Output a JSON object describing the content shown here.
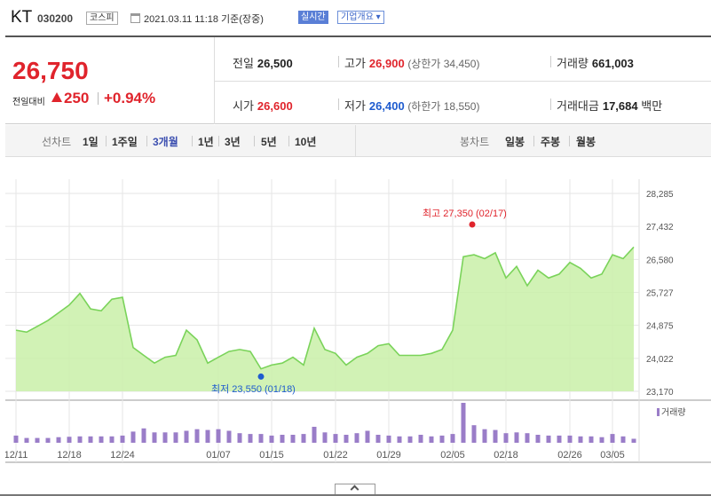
{
  "header": {
    "name": "KT",
    "code": "030200",
    "market": "코스피",
    "timestamp": "2021.03.11 11:18 기준(장중)",
    "realtime_label": "실시간",
    "company_label": "기업개요"
  },
  "price": {
    "current": "26,750",
    "change_label": "전일대비",
    "change": "250",
    "change_pct": "+0.94%",
    "prev_label": "전일",
    "prev": "26,500",
    "high_label": "고가",
    "high": "26,900",
    "upper_limit": "(상한가 34,450)",
    "volume_label": "거래량",
    "volume": "661,003",
    "open_label": "시가",
    "open": "26,600",
    "low_label": "저가",
    "low": "26,400",
    "lower_limit": "(하한가 18,550)",
    "amount_label": "거래대금",
    "amount": "17,684",
    "amount_unit": "백만"
  },
  "tabs": {
    "line_label": "선차트",
    "periods": [
      "1일",
      "1주일",
      "3개월",
      "1년",
      "3년",
      "5년",
      "10년"
    ],
    "active_period": "3개월",
    "candle_label": "봉차트",
    "candles": [
      "일봉",
      "주봉",
      "월봉"
    ]
  },
  "colors": {
    "up": "#e0242c",
    "down": "#1f5ccf",
    "area_fill": "#c9f0a8",
    "line": "#7ad35a",
    "volume_bar": "#9a7dc8"
  },
  "chart_data": {
    "type": "area",
    "y_ticks": [
      "28,285",
      "27,432",
      "26,580",
      "25,727",
      "24,875",
      "24,022",
      "23,170"
    ],
    "ylim": [
      23170,
      28285
    ],
    "x_ticks": [
      "12/11",
      "12/18",
      "12/24",
      "01/07",
      "01/15",
      "01/22",
      "01/29",
      "02/05",
      "02/18",
      "02/26",
      "03/05"
    ],
    "annotation_high": "최고 27,350 (02/17)",
    "annotation_low": "최저 23,550 (01/18)",
    "volume_label": "거래량",
    "values": [
      24750,
      24700,
      24850,
      25000,
      25200,
      25400,
      25700,
      25300,
      25250,
      25550,
      25600,
      24300,
      24100,
      23900,
      24050,
      24100,
      24750,
      24500,
      23900,
      24050,
      24200,
      24250,
      24200,
      23750,
      23850,
      23900,
      24050,
      23850,
      24800,
      24250,
      24150,
      23850,
      24050,
      24150,
      24350,
      24400,
      24100,
      24100,
      24100,
      24150,
      24250,
      24750,
      26650,
      26700,
      26600,
      26750,
      26100,
      26400,
      25900,
      26300,
      26100,
      26200,
      26500,
      26350,
      26100,
      26200,
      26700,
      26600,
      26900
    ],
    "volumes": [
      0.18,
      0.12,
      0.12,
      0.12,
      0.14,
      0.15,
      0.16,
      0.16,
      0.16,
      0.16,
      0.18,
      0.28,
      0.36,
      0.26,
      0.26,
      0.26,
      0.3,
      0.34,
      0.32,
      0.34,
      0.3,
      0.24,
      0.22,
      0.22,
      0.18,
      0.2,
      0.2,
      0.22,
      0.4,
      0.26,
      0.22,
      0.2,
      0.24,
      0.3,
      0.2,
      0.18,
      0.16,
      0.16,
      0.2,
      0.16,
      0.18,
      0.22,
      1.0,
      0.44,
      0.34,
      0.32,
      0.24,
      0.26,
      0.24,
      0.2,
      0.18,
      0.18,
      0.18,
      0.16,
      0.16,
      0.14,
      0.22,
      0.16,
      0.1
    ]
  }
}
